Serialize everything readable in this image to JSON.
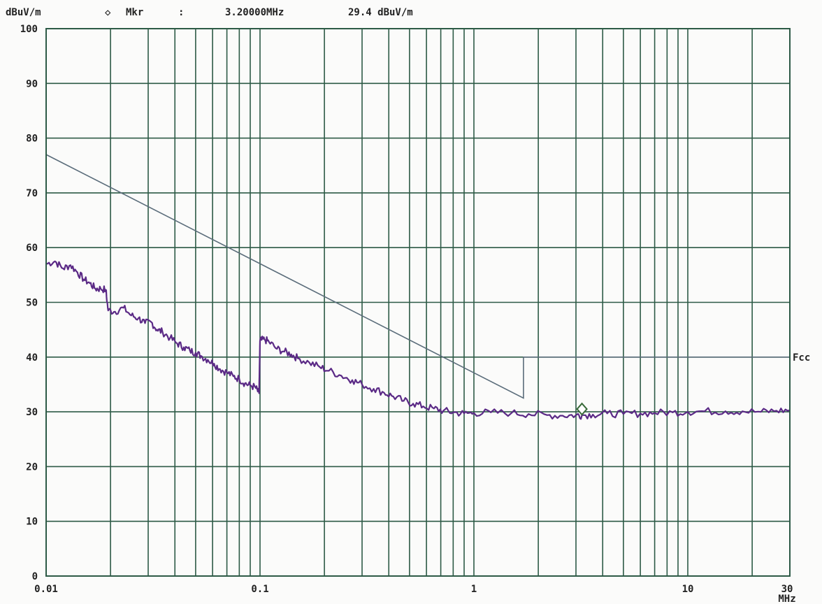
{
  "header": {
    "unit": "dBuV/m",
    "marker_symbol": "◇",
    "marker_label": "Mkr",
    "marker_sep": ":",
    "marker_freq": "3.20000MHz",
    "marker_level": "29.4 dBuV/m"
  },
  "chart_data": {
    "type": "line",
    "title": "",
    "ylabel": "dBuV/m",
    "xlabel": "MHz",
    "x_scale": "log",
    "xlim": [
      0.01,
      30
    ],
    "ylim": [
      0,
      100
    ],
    "grid": true,
    "y_ticks": [
      "0",
      "10",
      "20",
      "30",
      "40",
      "50",
      "60",
      "70",
      "80",
      "90",
      "100"
    ],
    "x_ticks": [
      {
        "value": 0.01,
        "label": "0.01"
      },
      {
        "value": 0.1,
        "label": "0.1"
      },
      {
        "value": 1,
        "label": "1"
      },
      {
        "value": 10,
        "label": "10"
      },
      {
        "value": 30,
        "label": "30"
      }
    ],
    "x_unit_label": "MHz",
    "limit_line": {
      "label": "Fcc",
      "color": "#5a6c7a",
      "points": [
        [
          0.01,
          77
        ],
        [
          1.705,
          32.5
        ],
        [
          1.705,
          40
        ],
        [
          30,
          40
        ]
      ]
    },
    "series": [
      {
        "color": "#5b2a86",
        "points": [
          [
            0.01,
            57
          ],
          [
            0.011,
            57.5
          ],
          [
            0.012,
            56.2
          ],
          [
            0.013,
            56.8
          ],
          [
            0.014,
            55.5
          ],
          [
            0.015,
            54.2
          ],
          [
            0.016,
            53.5
          ],
          [
            0.017,
            52.5
          ],
          [
            0.018,
            52.5
          ],
          [
            0.019,
            52.3
          ],
          [
            0.0195,
            48.5
          ],
          [
            0.021,
            48.3
          ],
          [
            0.023,
            49
          ],
          [
            0.025,
            47.6
          ],
          [
            0.027,
            47.1
          ],
          [
            0.029,
            46.2
          ],
          [
            0.031,
            46.4
          ],
          [
            0.033,
            45
          ],
          [
            0.035,
            44.6
          ],
          [
            0.038,
            43.5
          ],
          [
            0.041,
            42.5
          ],
          [
            0.044,
            41.8
          ],
          [
            0.047,
            41.2
          ],
          [
            0.05,
            40.8
          ],
          [
            0.053,
            40.2
          ],
          [
            0.057,
            39.5
          ],
          [
            0.061,
            38.8
          ],
          [
            0.065,
            37.8
          ],
          [
            0.07,
            37.2
          ],
          [
            0.075,
            36.5
          ],
          [
            0.08,
            36
          ],
          [
            0.085,
            35.2
          ],
          [
            0.09,
            34.8
          ],
          [
            0.095,
            34.5
          ],
          [
            0.099,
            33.4
          ],
          [
            0.1,
            43
          ],
          [
            0.105,
            43.2
          ],
          [
            0.11,
            42.8
          ],
          [
            0.12,
            41.5
          ],
          [
            0.13,
            41
          ],
          [
            0.14,
            40.5
          ],
          [
            0.15,
            39.8
          ],
          [
            0.17,
            39
          ],
          [
            0.19,
            38.2
          ],
          [
            0.21,
            37.5
          ],
          [
            0.24,
            36.6
          ],
          [
            0.27,
            35.8
          ],
          [
            0.3,
            35
          ],
          [
            0.34,
            34.2
          ],
          [
            0.38,
            33.5
          ],
          [
            0.42,
            32.8
          ],
          [
            0.47,
            32
          ],
          [
            0.52,
            31.5
          ],
          [
            0.58,
            31
          ],
          [
            0.65,
            30.6
          ],
          [
            0.72,
            30.2
          ],
          [
            0.8,
            29.9
          ],
          [
            0.9,
            29.7
          ],
          [
            1.0,
            29.8
          ],
          [
            1.2,
            29.9
          ],
          [
            1.5,
            29.8
          ],
          [
            1.8,
            29.6
          ],
          [
            2.2,
            29.4
          ],
          [
            2.6,
            29.3
          ],
          [
            3.0,
            29.4
          ],
          [
            3.2,
            29.4
          ],
          [
            3.6,
            29.5
          ],
          [
            4.2,
            29.7
          ],
          [
            5,
            29.6
          ],
          [
            6,
            29.7
          ],
          [
            7,
            29.8
          ],
          [
            8.5,
            29.9
          ],
          [
            10,
            30
          ],
          [
            12,
            30.1
          ],
          [
            15,
            30.1
          ],
          [
            18,
            30.1
          ],
          [
            22,
            30
          ],
          [
            26,
            30.2
          ],
          [
            30,
            30.3
          ]
        ]
      }
    ],
    "marker": {
      "x": 3.2,
      "y": 30.5,
      "color": "#3a6b3a"
    }
  }
}
